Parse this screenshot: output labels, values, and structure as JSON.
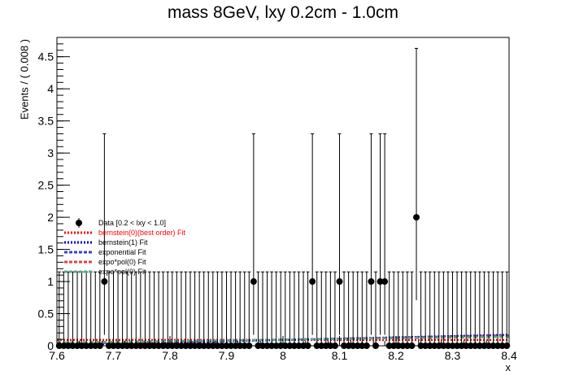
{
  "chart_data": {
    "type": "scatter",
    "title": "mass 8GeV, lxy 0.2cm - 1.0cm",
    "xlabel": "x",
    "ylabel": "Events / ( 0.008 )",
    "xlim": [
      7.6,
      8.4
    ],
    "ylim": [
      0,
      4.8
    ],
    "bin_width": 0.008,
    "xticks": [
      "7.6",
      "7.7",
      "7.8",
      "7.9",
      "8",
      "8.1",
      "8.2",
      "8.3",
      "8.4"
    ],
    "yticks": [
      "0",
      "0.5",
      "1",
      "1.5",
      "2",
      "2.5",
      "3",
      "3.5",
      "4",
      "4.5"
    ],
    "data_series": {
      "name": "Data [0.2 < lxy < 1.0]",
      "nonzero_points": [
        {
          "x": 7.684,
          "y": 1,
          "err_low": 0.83,
          "err_high": 2.3
        },
        {
          "x": 7.948,
          "y": 1,
          "err_low": 0.83,
          "err_high": 2.3
        },
        {
          "x": 8.052,
          "y": 1,
          "err_low": 0.83,
          "err_high": 2.3
        },
        {
          "x": 8.1,
          "y": 1,
          "err_low": 0.83,
          "err_high": 2.3
        },
        {
          "x": 8.156,
          "y": 1,
          "err_low": 0.83,
          "err_high": 2.3
        },
        {
          "x": 8.172,
          "y": 1,
          "err_low": 0.83,
          "err_high": 2.3
        },
        {
          "x": 8.18,
          "y": 1,
          "err_low": 0.83,
          "err_high": 2.3
        },
        {
          "x": 8.236,
          "y": 2,
          "err_low": 1.29,
          "err_high": 2.63
        }
      ],
      "zero_bin_err_high": 1.15
    },
    "fits": [
      {
        "name": "bernstein(0)(best order) Fit",
        "color": "#ff0000",
        "dash": "dotted",
        "x": [
          7.6,
          8.4
        ],
        "y": [
          0.09,
          0.09
        ]
      },
      {
        "name": "bernstein(1) Fit",
        "color": "#0000cc",
        "dash": "dotted",
        "x": [
          7.6,
          8.4
        ],
        "y": [
          0.01,
          0.17
        ]
      },
      {
        "name": "exponential Fit",
        "color": "#3344cc",
        "dash": "dashed",
        "x": [
          7.6,
          8.4
        ],
        "y": [
          0.03,
          0.16
        ]
      },
      {
        "name": "expo*pol(0) Fit",
        "color": "#dd4444",
        "dash": "dashed",
        "x": [
          7.6,
          8.4
        ],
        "y": [
          0.04,
          0.15
        ]
      },
      {
        "name": "expo*pol(0) Fit",
        "color": "#55aa88",
        "dash": "dashed",
        "x": [
          7.6,
          8.4
        ],
        "y": [
          0.05,
          0.14
        ]
      }
    ],
    "legend_position": "middle-left"
  },
  "legend": {
    "data_label": "Data [0.2 < lxy < 1.0]",
    "items": [
      {
        "label": "bernstein(0)(best order) Fit",
        "color": "#ff0000",
        "dash": "2,2",
        "text_color": "#ff0000"
      },
      {
        "label": "bernstein(1) Fit",
        "color": "#0000cc",
        "dash": "2,2",
        "text_color": "#000000"
      },
      {
        "label": "exponential Fit",
        "color": "#3344cc",
        "dash": "4,2",
        "text_color": "#000000"
      },
      {
        "label": "expo*pol(0) Fit",
        "color": "#dd4444",
        "dash": "4,2",
        "text_color": "#000000"
      },
      {
        "label": "expo*pol(0) Fit",
        "color": "#55aa88",
        "dash": "4,2",
        "text_color": "#000000"
      }
    ]
  }
}
